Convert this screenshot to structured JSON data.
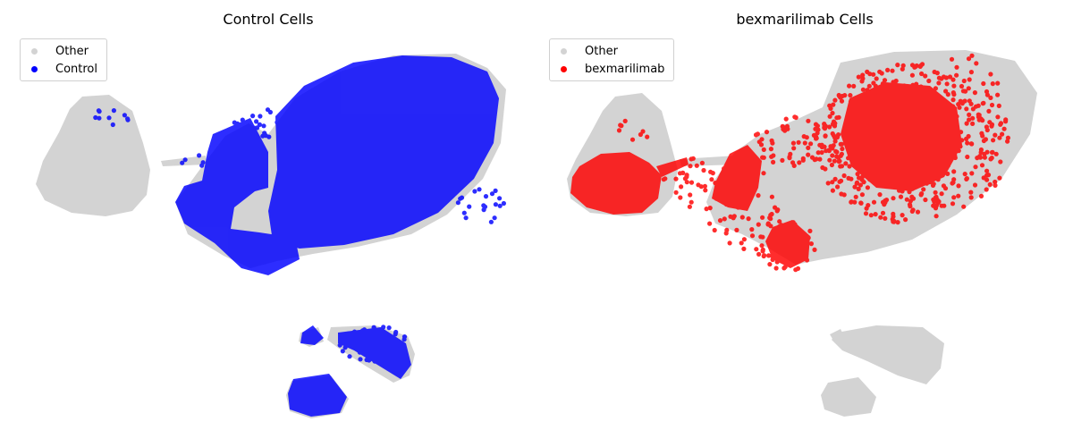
{
  "chart_data": [
    {
      "type": "scatter",
      "title": "Control Cells",
      "xlabel": "",
      "ylabel": "",
      "axes_visible": false,
      "legend_position": "top-left",
      "legend": [
        {
          "label": "Other",
          "color": "#d3d3d3"
        },
        {
          "label": "Control",
          "color": "#0000ff"
        }
      ],
      "series": [
        {
          "name": "Other",
          "color": "#d3d3d3",
          "role": "background"
        },
        {
          "name": "Control",
          "color": "#0000ff",
          "role": "highlight"
        }
      ]
    },
    {
      "type": "scatter",
      "title": "bexmarilimab Cells",
      "xlabel": "",
      "ylabel": "",
      "axes_visible": false,
      "legend_position": "top-left",
      "legend": [
        {
          "label": "Other",
          "color": "#d3d3d3"
        },
        {
          "label": "bexmarilimab",
          "color": "#ff0000"
        }
      ],
      "series": [
        {
          "name": "Other",
          "color": "#d3d3d3",
          "role": "background"
        },
        {
          "name": "bexmarilimab",
          "color": "#ff0000",
          "role": "highlight"
        }
      ]
    }
  ]
}
